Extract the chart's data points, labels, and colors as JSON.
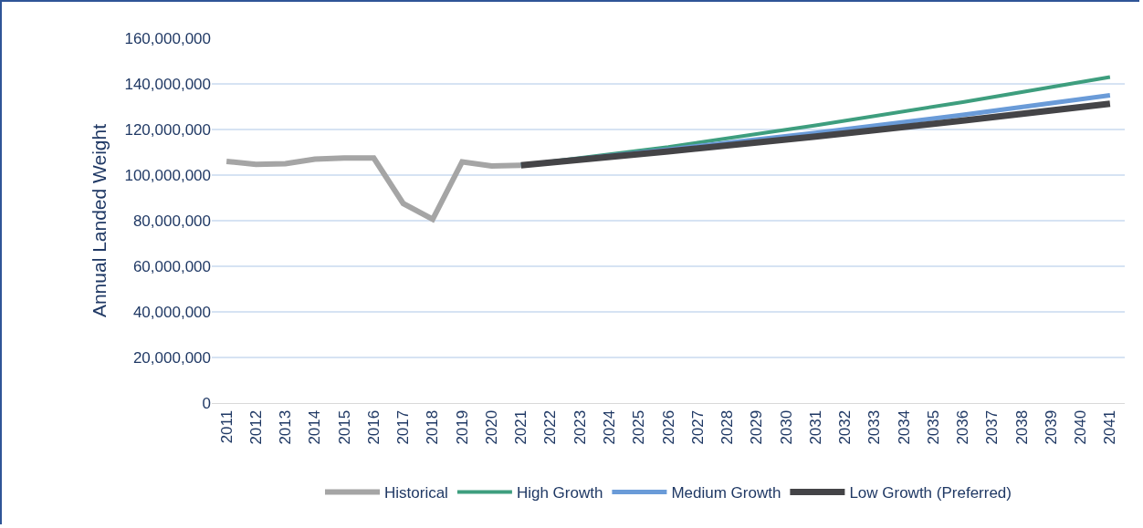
{
  "chart_data": {
    "type": "line",
    "ylabel": "Annual Landed Weight",
    "xlim": [
      2010.5,
      2041.5
    ],
    "xticks": [
      2011,
      2012,
      2013,
      2014,
      2015,
      2016,
      2017,
      2018,
      2019,
      2020,
      2021,
      2022,
      2023,
      2024,
      2025,
      2026,
      2027,
      2028,
      2029,
      2030,
      2031,
      2032,
      2033,
      2034,
      2035,
      2036,
      2037,
      2038,
      2039,
      2040,
      2041
    ],
    "ylim": [
      0,
      160000000
    ],
    "yticks": [
      {
        "value": 0,
        "label": "0"
      },
      {
        "value": 20000000,
        "label": "20,000,000"
      },
      {
        "value": 40000000,
        "label": "40,000,000"
      },
      {
        "value": 60000000,
        "label": "60,000,000"
      },
      {
        "value": 80000000,
        "label": "80,000,000"
      },
      {
        "value": 100000000,
        "label": "100,000,000"
      },
      {
        "value": 120000000,
        "label": "120,000,000"
      },
      {
        "value": 140000000,
        "label": "140,000,000"
      },
      {
        "value": 160000000,
        "label": "160,000,000"
      }
    ],
    "grid": "y",
    "legend": "bottom",
    "marker": "none",
    "line_style": "solid",
    "series": [
      {
        "name": "Historical",
        "color": "#a5a5a5",
        "x": [
          2011,
          2012,
          2013,
          2014,
          2015,
          2016,
          2017,
          2018,
          2019,
          2020,
          2021
        ],
        "values": [
          106000000,
          104700000,
          105000000,
          107000000,
          107500000,
          107500000,
          87500000,
          80600000,
          105800000,
          104000000,
          104300000
        ]
      },
      {
        "name": "High Growth",
        "color": "#3e9e7e",
        "x": [
          2021,
          2026,
          2031,
          2036,
          2041
        ],
        "values": [
          104300000,
          112300000,
          121800000,
          132000000,
          143000000
        ]
      },
      {
        "name": "Medium Growth",
        "color": "#6a9bd8",
        "x": [
          2021,
          2026,
          2031,
          2036,
          2041
        ],
        "values": [
          104300000,
          111200000,
          118500000,
          126400000,
          135000000
        ]
      },
      {
        "name": "Low Growth (Preferred)",
        "color": "#444447",
        "x": [
          2021,
          2026,
          2031,
          2036,
          2041
        ],
        "values": [
          104300000,
          110400000,
          116900000,
          123900000,
          131300000
        ]
      }
    ]
  }
}
